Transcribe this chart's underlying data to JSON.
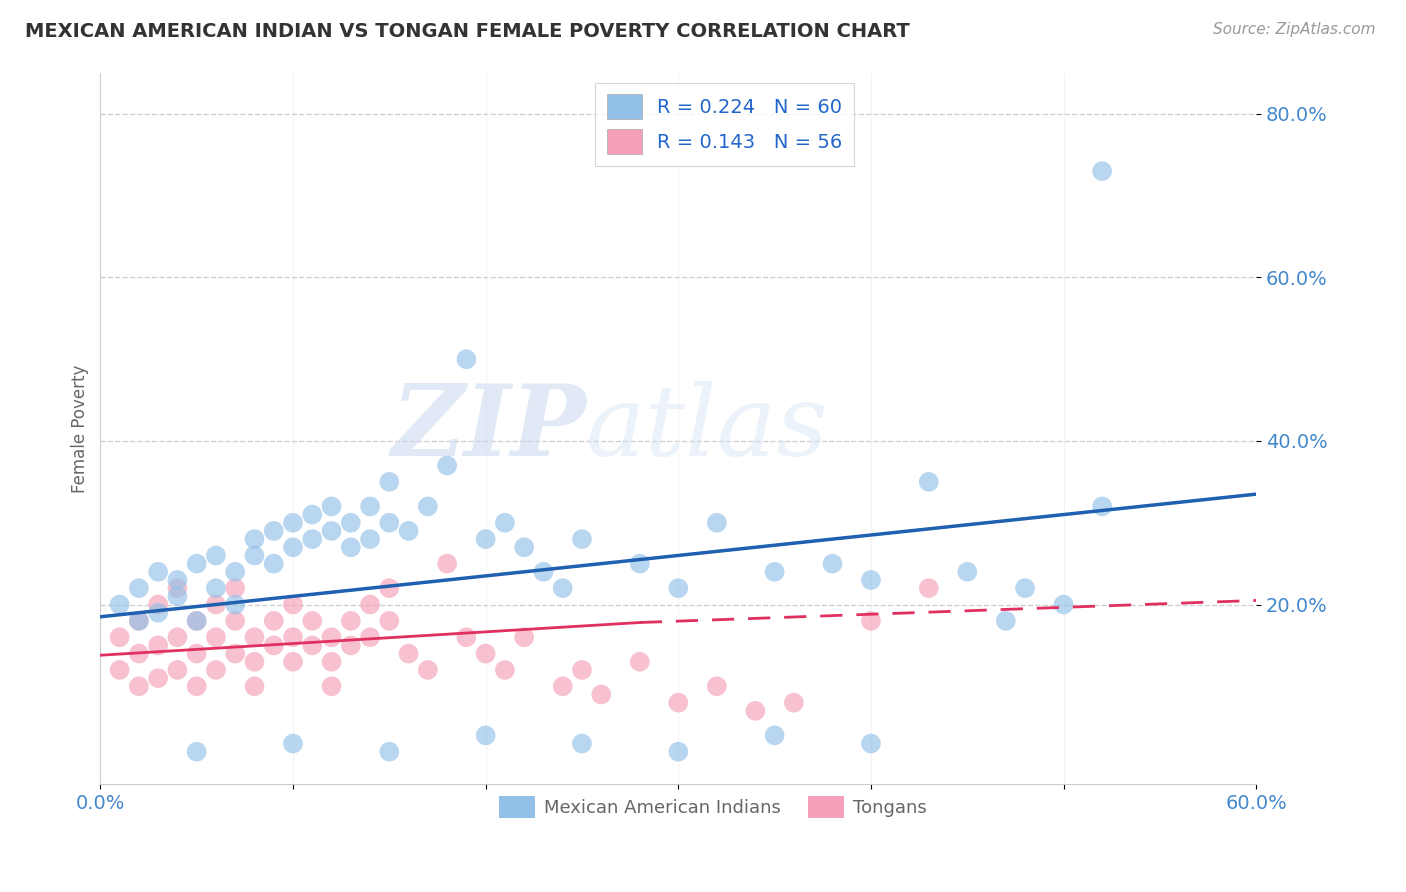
{
  "title": "MEXICAN AMERICAN INDIAN VS TONGAN FEMALE POVERTY CORRELATION CHART",
  "source_text": "Source: ZipAtlas.com",
  "ylabel": "Female Poverty",
  "xlim": [
    0.0,
    0.6
  ],
  "ylim": [
    -0.02,
    0.85
  ],
  "ytick_positions": [
    0.2,
    0.4,
    0.6,
    0.8
  ],
  "ytick_labels": [
    "20.0%",
    "40.0%",
    "60.0%",
    "80.0%"
  ],
  "watermark_zip": "ZIP",
  "watermark_atlas": "atlas",
  "blue_color": "#92C0E8",
  "pink_color": "#F4A0B8",
  "blue_line_color": "#2060B0",
  "pink_line_color": "#E03060",
  "series1_label": "Mexican American Indians",
  "series2_label": "Tongans",
  "blue_R": 0.224,
  "blue_N": 60,
  "pink_R": 0.143,
  "pink_N": 56,
  "blue_scatter_x": [
    0.01,
    0.02,
    0.02,
    0.03,
    0.03,
    0.04,
    0.04,
    0.05,
    0.05,
    0.06,
    0.06,
    0.07,
    0.07,
    0.08,
    0.08,
    0.09,
    0.09,
    0.1,
    0.1,
    0.11,
    0.11,
    0.12,
    0.12,
    0.13,
    0.13,
    0.14,
    0.14,
    0.15,
    0.15,
    0.16,
    0.17,
    0.18,
    0.19,
    0.2,
    0.21,
    0.22,
    0.23,
    0.24,
    0.25,
    0.28,
    0.3,
    0.32,
    0.35,
    0.38,
    0.4,
    0.43,
    0.45,
    0.48,
    0.5,
    0.52,
    0.05,
    0.1,
    0.15,
    0.2,
    0.25,
    0.3,
    0.35,
    0.4,
    0.52,
    0.47
  ],
  "blue_scatter_y": [
    0.2,
    0.22,
    0.18,
    0.24,
    0.19,
    0.23,
    0.21,
    0.25,
    0.18,
    0.26,
    0.22,
    0.24,
    0.2,
    0.28,
    0.26,
    0.29,
    0.25,
    0.27,
    0.3,
    0.28,
    0.31,
    0.29,
    0.32,
    0.3,
    0.27,
    0.32,
    0.28,
    0.35,
    0.3,
    0.29,
    0.32,
    0.37,
    0.5,
    0.28,
    0.3,
    0.27,
    0.24,
    0.22,
    0.28,
    0.25,
    0.22,
    0.3,
    0.24,
    0.25,
    0.23,
    0.35,
    0.24,
    0.22,
    0.2,
    0.32,
    0.02,
    0.03,
    0.02,
    0.04,
    0.03,
    0.02,
    0.04,
    0.03,
    0.73,
    0.18
  ],
  "pink_scatter_x": [
    0.01,
    0.01,
    0.02,
    0.02,
    0.02,
    0.03,
    0.03,
    0.03,
    0.04,
    0.04,
    0.04,
    0.05,
    0.05,
    0.05,
    0.06,
    0.06,
    0.06,
    0.07,
    0.07,
    0.07,
    0.08,
    0.08,
    0.08,
    0.09,
    0.09,
    0.1,
    0.1,
    0.1,
    0.11,
    0.11,
    0.12,
    0.12,
    0.12,
    0.13,
    0.13,
    0.14,
    0.14,
    0.15,
    0.15,
    0.16,
    0.17,
    0.18,
    0.19,
    0.2,
    0.21,
    0.22,
    0.24,
    0.25,
    0.26,
    0.28,
    0.3,
    0.32,
    0.34,
    0.36,
    0.4,
    0.43
  ],
  "pink_scatter_y": [
    0.16,
    0.12,
    0.18,
    0.14,
    0.1,
    0.2,
    0.15,
    0.11,
    0.22,
    0.16,
    0.12,
    0.18,
    0.14,
    0.1,
    0.2,
    0.16,
    0.12,
    0.22,
    0.18,
    0.14,
    0.16,
    0.13,
    0.1,
    0.18,
    0.15,
    0.2,
    0.16,
    0.13,
    0.18,
    0.15,
    0.16,
    0.13,
    0.1,
    0.18,
    0.15,
    0.2,
    0.16,
    0.18,
    0.22,
    0.14,
    0.12,
    0.25,
    0.16,
    0.14,
    0.12,
    0.16,
    0.1,
    0.12,
    0.09,
    0.13,
    0.08,
    0.1,
    0.07,
    0.08,
    0.18,
    0.22
  ]
}
